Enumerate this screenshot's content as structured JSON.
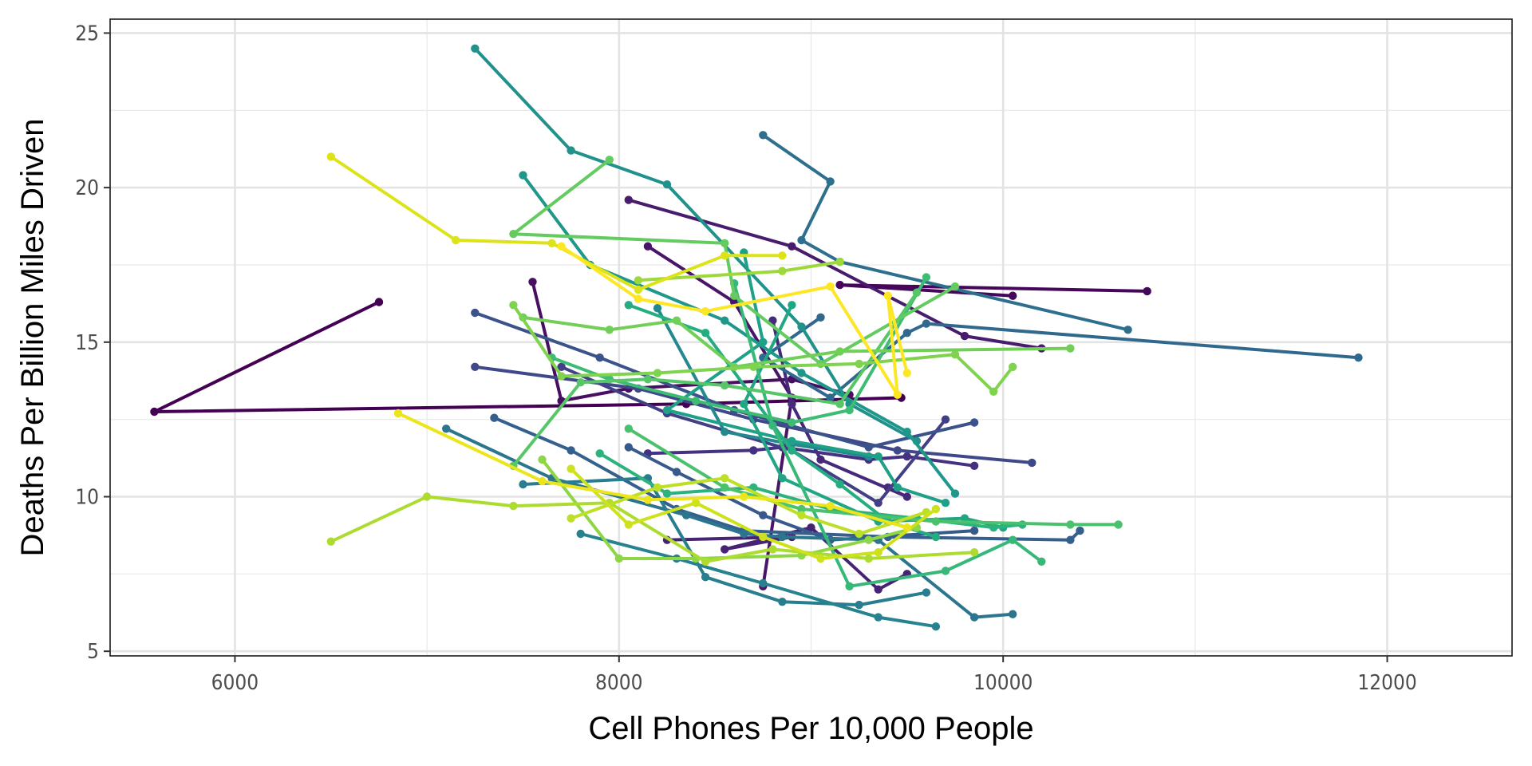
{
  "chart_data": {
    "type": "line",
    "title": "",
    "xlabel": "Cell Phones Per 10,000 People",
    "ylabel": "Deaths Per Billion Miles Driven",
    "xlim": [
      5350,
      12650
    ],
    "ylim": [
      4.85,
      25.45
    ],
    "xticks": [
      6000,
      8000,
      10000,
      12000
    ],
    "xtick_labels": [
      "6000",
      "8000",
      "10000",
      "12000"
    ],
    "yticks": [
      5,
      10,
      15,
      20,
      25
    ],
    "ytick_labels": [
      "5",
      "10",
      "15",
      "20",
      "25"
    ],
    "grid": true,
    "legend": "none",
    "markers": true,
    "series": [
      {
        "color": "#440154",
        "x": [
          6750,
          5580,
          8350,
          9470
        ],
        "y": [
          16.3,
          12.75,
          13.0,
          13.2
        ]
      },
      {
        "color": "#46075a",
        "x": [
          10750,
          9150,
          10050
        ],
        "y": [
          16.65,
          16.85,
          16.5
        ]
      },
      {
        "color": "#470e61",
        "x": [
          7550,
          7700,
          8050,
          8900,
          9200
        ],
        "y": [
          16.95,
          13.1,
          13.5,
          13.8,
          13.3
        ]
      },
      {
        "color": "#481568",
        "x": [
          8150,
          8600,
          8900,
          8750
        ],
        "y": [
          18.1,
          16.3,
          13.2,
          7.1
        ]
      },
      {
        "color": "#481b6d",
        "x": [
          8050,
          8900,
          9800,
          10200
        ],
        "y": [
          19.6,
          18.1,
          15.2,
          14.8
        ]
      },
      {
        "color": "#472374",
        "x": [
          8250,
          8900,
          8550,
          9000,
          9350,
          9500
        ],
        "y": [
          8.6,
          8.7,
          8.3,
          9.0,
          7.0,
          7.5
        ]
      },
      {
        "color": "#46297a",
        "x": [
          8800,
          8900,
          9050,
          9500,
          9400
        ],
        "y": [
          15.7,
          13.0,
          11.2,
          10.0,
          10.3
        ]
      },
      {
        "color": "#453181",
        "x": [
          8150,
          8700,
          8850,
          9300,
          9500,
          9850
        ],
        "y": [
          11.4,
          11.5,
          11.6,
          11.2,
          11.3,
          11.0
        ]
      },
      {
        "color": "#423f85",
        "x": [
          7700,
          8250,
          8900,
          9350,
          9700
        ],
        "y": [
          14.2,
          12.7,
          11.5,
          9.8,
          12.5
        ]
      },
      {
        "color": "#3f4889",
        "x": [
          7250,
          8100,
          8700,
          9450,
          10150
        ],
        "y": [
          14.2,
          13.5,
          12.5,
          11.5,
          11.1
        ]
      },
      {
        "color": "#3b528b",
        "x": [
          7250,
          7900,
          8600,
          9300,
          9850
        ],
        "y": [
          15.95,
          14.5,
          12.8,
          11.6,
          12.4
        ]
      },
      {
        "color": "#38598c",
        "x": [
          8050,
          8300,
          8750,
          9100,
          9850
        ],
        "y": [
          11.6,
          10.8,
          9.4,
          8.6,
          8.9
        ]
      },
      {
        "color": "#35608d",
        "x": [
          7350,
          7750,
          8300,
          8650,
          9400,
          10350,
          10400
        ],
        "y": [
          12.55,
          11.5,
          9.6,
          8.9,
          8.7,
          8.6,
          8.9
        ]
      },
      {
        "color": "#31688e",
        "x": [
          9050,
          8750,
          9100,
          9500,
          9600,
          11850
        ],
        "y": [
          15.8,
          14.5,
          13.2,
          15.3,
          15.6,
          14.5
        ]
      },
      {
        "color": "#2e6f8e",
        "x": [
          8750,
          9100,
          8950,
          9150,
          10650
        ],
        "y": [
          21.7,
          20.2,
          18.3,
          17.6,
          15.4
        ]
      },
      {
        "color": "#2b758e",
        "x": [
          7100,
          7650,
          8350,
          8650,
          8850,
          9350,
          9850,
          10050
        ],
        "y": [
          12.2,
          10.6,
          9.4,
          8.8,
          8.7,
          8.6,
          6.1,
          6.2
        ]
      },
      {
        "color": "#287d8e",
        "x": [
          7500,
          8150,
          8450,
          8850,
          9250,
          9600
        ],
        "y": [
          10.4,
          10.6,
          7.4,
          6.6,
          6.5,
          6.9
        ]
      },
      {
        "color": "#26828e",
        "x": [
          7800,
          8300,
          8750,
          9350,
          9650
        ],
        "y": [
          8.8,
          8.0,
          7.2,
          6.1,
          5.8
        ]
      },
      {
        "color": "#23898e",
        "x": [
          8200,
          8550,
          8900,
          9300
        ],
        "y": [
          16.1,
          12.1,
          11.7,
          11.3
        ]
      },
      {
        "color": "#21918c",
        "x": [
          7250,
          7750,
          8250,
          8950,
          9200,
          9550
        ],
        "y": [
          24.5,
          21.2,
          20.1,
          15.5,
          13.0,
          11.8
        ]
      },
      {
        "color": "#1f988b",
        "x": [
          7500,
          7850,
          8550,
          8950,
          9500,
          9750
        ],
        "y": [
          20.4,
          17.5,
          15.7,
          14.0,
          12.1,
          10.1
        ]
      },
      {
        "color": "#1fa088",
        "x": [
          8650,
          8750,
          8250,
          8900,
          9350,
          9450,
          9700
        ],
        "y": [
          17.9,
          15.0,
          12.8,
          11.8,
          11.3,
          10.3,
          9.8
        ]
      },
      {
        "color": "#21a685",
        "x": [
          8900,
          8650,
          8850,
          9350,
          9800,
          10000
        ],
        "y": [
          16.2,
          13.0,
          10.6,
          9.2,
          9.3,
          9.0
        ]
      },
      {
        "color": "#25ad82",
        "x": [
          8050,
          8450,
          8900,
          9150,
          9400,
          9650
        ],
        "y": [
          16.2,
          15.3,
          11.5,
          10.4,
          9.2,
          8.7
        ]
      },
      {
        "color": "#2db27d",
        "x": [
          7900,
          8250,
          8700,
          9100,
          9550,
          9950,
          10100
        ],
        "y": [
          11.4,
          10.1,
          10.3,
          9.6,
          9.3,
          9.0,
          9.1
        ]
      },
      {
        "color": "#37b878",
        "x": [
          8600,
          8800,
          9200,
          9700,
          10050,
          10200
        ],
        "y": [
          16.9,
          12.3,
          7.1,
          7.6,
          8.6,
          7.9
        ]
      },
      {
        "color": "#3fbc73",
        "x": [
          7650,
          7950,
          8400,
          8900,
          9200,
          9600
        ],
        "y": [
          14.5,
          13.8,
          13.1,
          12.4,
          12.8,
          17.1
        ]
      },
      {
        "color": "#4ac16d",
        "x": [
          8050,
          8550,
          8950,
          9650,
          10350,
          10600
        ],
        "y": [
          12.2,
          10.3,
          9.6,
          9.2,
          9.1,
          9.1
        ]
      },
      {
        "color": "#56c667",
        "x": [
          7450,
          7800,
          8150,
          8550,
          9150,
          9550
        ],
        "y": [
          11.0,
          13.7,
          13.8,
          13.6,
          13.0,
          16.6
        ]
      },
      {
        "color": "#63cb5f",
        "x": [
          7950,
          7450,
          8550,
          8600,
          9050,
          9750
        ],
        "y": [
          20.9,
          18.5,
          18.2,
          16.5,
          14.3,
          16.8
        ]
      },
      {
        "color": "#71cf57",
        "x": [
          7500,
          7950,
          8300,
          8600,
          9150,
          10350
        ],
        "y": [
          15.8,
          15.4,
          15.7,
          14.2,
          14.7,
          14.8
        ]
      },
      {
        "color": "#7fd34e",
        "x": [
          7450,
          7700,
          8200,
          8700,
          9250,
          9750,
          9950,
          10050
        ],
        "y": [
          16.2,
          13.9,
          14.0,
          14.2,
          14.3,
          14.6,
          13.4,
          14.2
        ]
      },
      {
        "color": "#8ed645",
        "x": [
          7600,
          8000,
          8400,
          8950,
          9300,
          9550
        ],
        "y": [
          11.2,
          8.0,
          8.0,
          8.1,
          8.6,
          9.0
        ]
      },
      {
        "color": "#9dd93b",
        "x": [
          8100,
          8850,
          9150
        ],
        "y": [
          17.0,
          17.3,
          17.6
        ]
      },
      {
        "color": "#addc30",
        "x": [
          6500,
          7000,
          7450,
          7950,
          8450,
          8800,
          9300,
          9850
        ],
        "y": [
          8.55,
          10.0,
          9.7,
          9.8,
          7.9,
          8.3,
          8.0,
          8.2
        ]
      },
      {
        "color": "#bddf26",
        "x": [
          7750,
          8200,
          8550,
          8950,
          9250,
          9600
        ],
        "y": [
          9.3,
          10.3,
          10.6,
          9.4,
          8.8,
          9.5
        ]
      },
      {
        "color": "#cde11d",
        "x": [
          7750,
          8050,
          8400,
          8750,
          9050,
          9350,
          9650
        ],
        "y": [
          10.9,
          9.1,
          9.8,
          8.7,
          8.0,
          8.2,
          9.6
        ]
      },
      {
        "color": "#dce319",
        "x": [
          6500,
          7150,
          7650,
          8100,
          8550,
          8850
        ],
        "y": [
          21.0,
          18.3,
          18.2,
          16.7,
          17.8,
          17.8
        ]
      },
      {
        "color": "#ede51b",
        "x": [
          6850,
          7600,
          8150,
          8650,
          9100,
          9500
        ],
        "y": [
          12.7,
          10.5,
          9.9,
          10.0,
          9.7,
          9.0
        ]
      },
      {
        "color": "#fde725",
        "x": [
          7700,
          8100,
          8450,
          9100,
          9450,
          9400,
          9500
        ],
        "y": [
          18.1,
          16.4,
          16.0,
          16.8,
          13.3,
          16.5,
          14.0
        ]
      }
    ]
  }
}
